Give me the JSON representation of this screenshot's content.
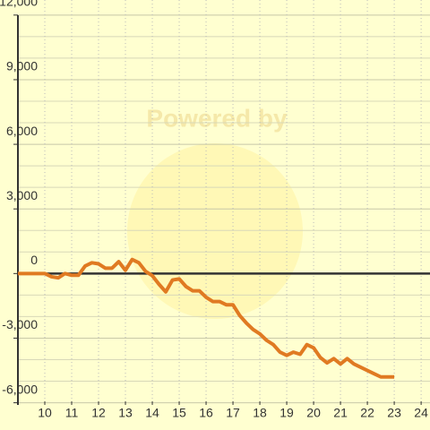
{
  "chart_data": {
    "type": "line",
    "watermark": "Powered by",
    "x": [
      9,
      10,
      10.25,
      10.5,
      10.75,
      11,
      11.25,
      11.5,
      11.75,
      12,
      12.25,
      12.5,
      12.75,
      13,
      13.25,
      13.5,
      13.75,
      14,
      14.25,
      14.5,
      14.75,
      15,
      15.25,
      15.5,
      15.75,
      16,
      16.25,
      16.5,
      16.75,
      17,
      17.25,
      17.5,
      17.75,
      18,
      18.25,
      18.5,
      18.75,
      19,
      19.25,
      19.5,
      19.75,
      20,
      20.25,
      20.5,
      20.75,
      21,
      21.25,
      21.5,
      21.75,
      22,
      22.25,
      22.5,
      23
    ],
    "series": [
      {
        "color": "#e07a22",
        "values": [
          0,
          0,
          -150,
          -200,
          0,
          -80,
          -80,
          350,
          500,
          450,
          250,
          250,
          550,
          150,
          650,
          500,
          100,
          -100,
          -500,
          -850,
          -300,
          -250,
          -600,
          -800,
          -800,
          -1100,
          -1300,
          -1300,
          -1450,
          -1450,
          -1950,
          -2300,
          -2600,
          -2800,
          -3100,
          -3300,
          -3650,
          -3800,
          -3650,
          -3750,
          -3300,
          -3450,
          -3900,
          -4150,
          -3950,
          -4200,
          -3950,
          -4200,
          -4350,
          -4500,
          -4650,
          -4800,
          -4800
        ]
      }
    ],
    "xlim": [
      9,
      24.33
    ],
    "ylim": [
      -6100,
      12700
    ],
    "xticks": [
      10,
      11,
      12,
      13,
      14,
      15,
      16,
      17,
      18,
      19,
      20,
      21,
      22,
      23,
      24
    ],
    "yticks": [
      {
        "value": 12000,
        "label": "12,000"
      },
      {
        "value": 9000,
        "label": "9,000"
      },
      {
        "value": 6000,
        "label": "6,000"
      },
      {
        "value": 3000,
        "label": "3,000"
      },
      0,
      {
        "value": -3000,
        "label": "-3,000"
      },
      {
        "value": -6000,
        "label": "-6,000"
      }
    ],
    "y_minor_ticks": [
      11000,
      10000,
      8000,
      7000,
      5000,
      4000,
      2000,
      1000,
      -1000,
      -2000,
      -4000,
      -5000
    ],
    "grid": true
  }
}
